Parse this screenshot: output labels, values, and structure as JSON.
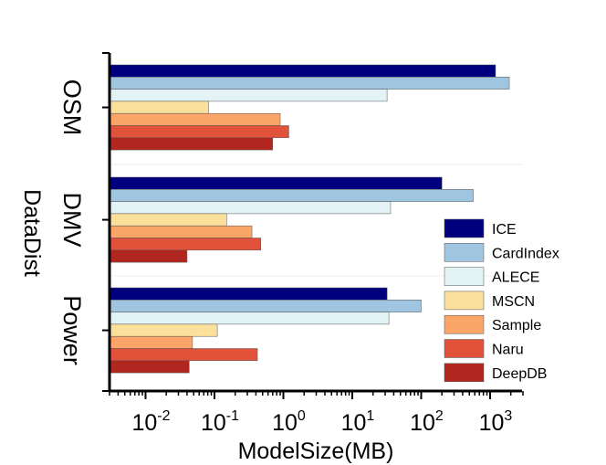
{
  "chart_data": {
    "type": "bar",
    "orientation": "horizontal",
    "x_scale": "log",
    "xlim": [
      0.003,
      3000
    ],
    "xlabel": "ModelSize(MB)",
    "ylabel": "DataDist",
    "x_ticks": [
      {
        "base": "10",
        "exp": "-2",
        "value": 0.01
      },
      {
        "base": "10",
        "exp": "-1",
        "value": 0.1
      },
      {
        "base": "10",
        "exp": "0",
        "value": 1
      },
      {
        "base": "10",
        "exp": "1",
        "value": 10
      },
      {
        "base": "10",
        "exp": "2",
        "value": 100
      },
      {
        "base": "10",
        "exp": "3",
        "value": 1000
      }
    ],
    "categories": [
      "OSM",
      "DMV",
      "Power"
    ],
    "series": [
      {
        "name": "ICE",
        "color": "#00007f",
        "values": [
          1200,
          200,
          32
        ]
      },
      {
        "name": "CardIndex",
        "color": "#9fc5e0",
        "values": [
          1900,
          570,
          100
        ]
      },
      {
        "name": "ALECE",
        "color": "#e2f2f5",
        "values": [
          32,
          36,
          34
        ]
      },
      {
        "name": "MSCN",
        "color": "#fae09a",
        "values": [
          0.082,
          0.15,
          0.11
        ]
      },
      {
        "name": "Sample",
        "color": "#fba569",
        "values": [
          0.9,
          0.35,
          0.048
        ]
      },
      {
        "name": "Naru",
        "color": "#e2513a",
        "values": [
          1.2,
          0.47,
          0.42
        ]
      },
      {
        "name": "DeepDB",
        "color": "#b1271f",
        "values": [
          0.7,
          0.04,
          0.043
        ]
      }
    ],
    "legend_position": "lower-right",
    "grid": false
  }
}
